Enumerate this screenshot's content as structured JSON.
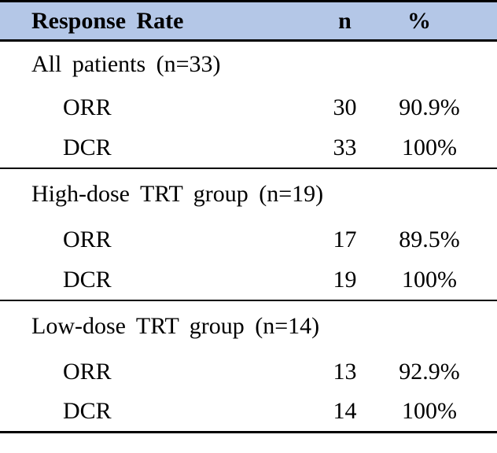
{
  "colors": {
    "header_bg": "#b4c7e7",
    "border": "#000000",
    "text": "#000000",
    "background": "#ffffff"
  },
  "table": {
    "header": {
      "label": "Response Rate",
      "n": "n",
      "pct": "%"
    },
    "sections": [
      {
        "group_label": "All patients (n=33)",
        "rows": [
          {
            "label": "ORR",
            "n": "30",
            "pct": "90.9%"
          },
          {
            "label": "DCR",
            "n": "33",
            "pct": "100%"
          }
        ]
      },
      {
        "group_label": "High-dose TRT group (n=19)",
        "rows": [
          {
            "label": "ORR",
            "n": "17",
            "pct": "89.5%"
          },
          {
            "label": "DCR",
            "n": "19",
            "pct": "100%"
          }
        ]
      },
      {
        "group_label": "Low-dose TRT group (n=14)",
        "rows": [
          {
            "label": "ORR",
            "n": "13",
            "pct": "92.9%"
          },
          {
            "label": "DCR",
            "n": "14",
            "pct": "100%"
          }
        ]
      }
    ]
  }
}
